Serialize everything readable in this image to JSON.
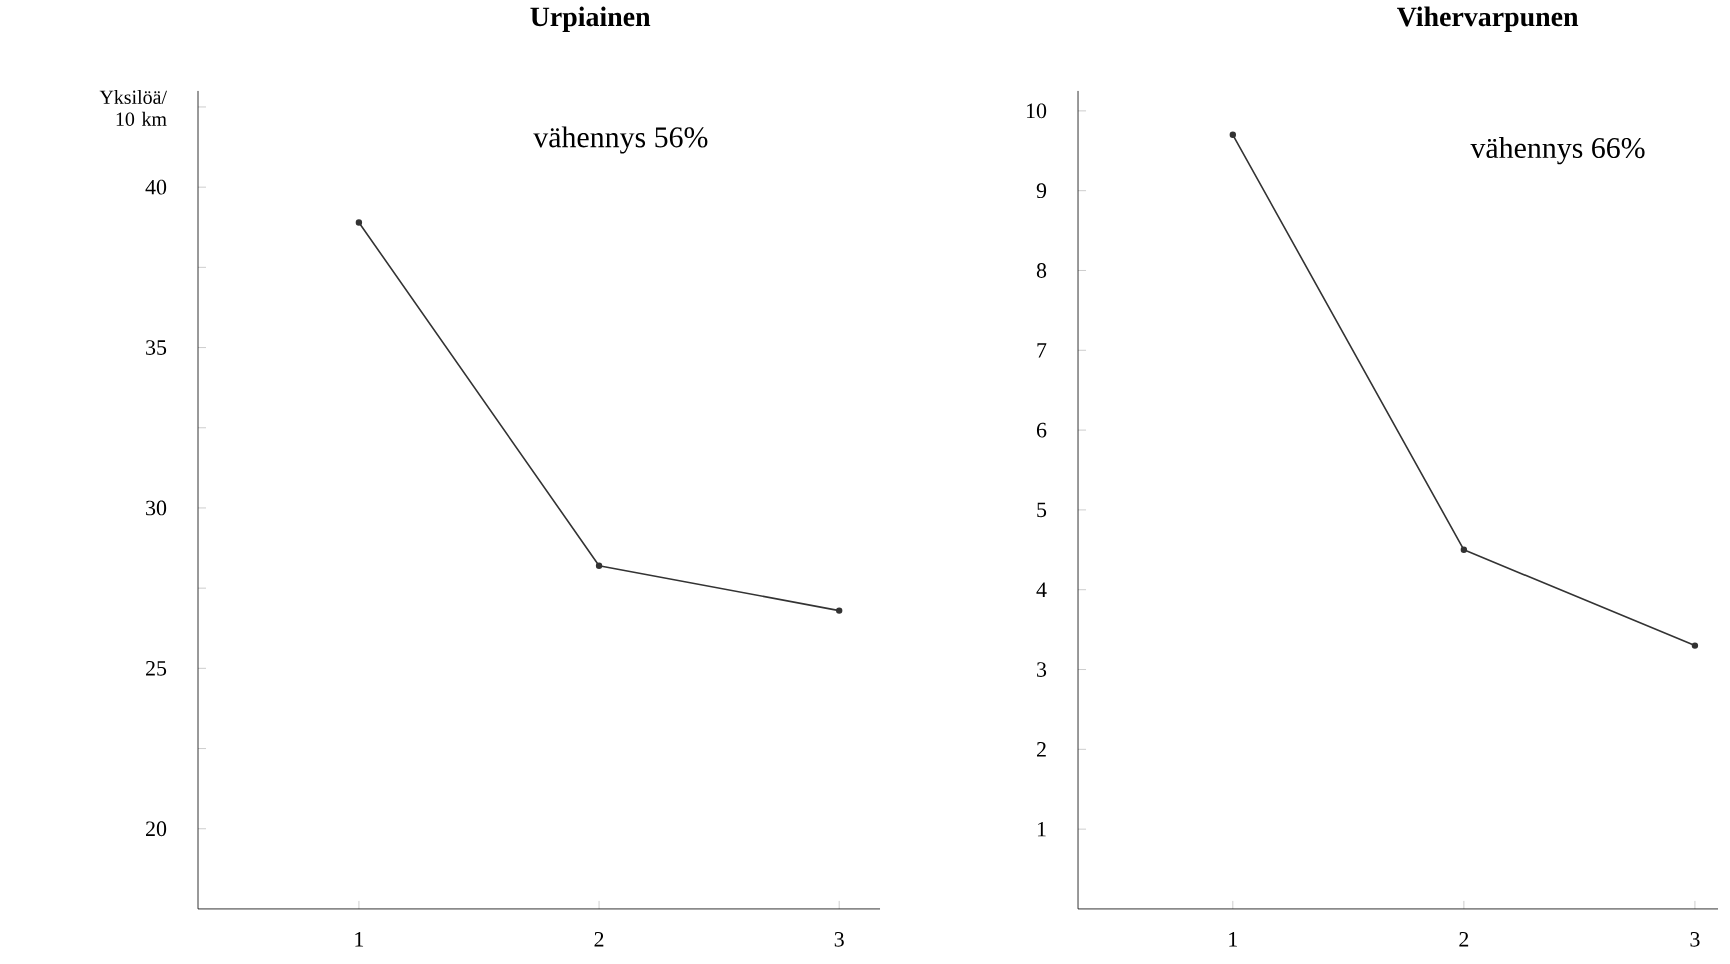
{
  "chart_data": [
    {
      "type": "line",
      "title": "Urpiainen",
      "ylabel": "Yksilöä/ 10 km",
      "annotations": [
        "vähennys 56%"
      ],
      "x": [
        1,
        2,
        3
      ],
      "xlim": [
        0.33,
        3.17
      ],
      "xticks": [
        1,
        2,
        3
      ],
      "ylim": [
        17.5,
        43
      ],
      "yticks": [
        20,
        {
          "value": 22.5,
          "label": null
        },
        25,
        {
          "value": 27.5,
          "label": null
        },
        30,
        {
          "value": 32.5,
          "label": null
        },
        35,
        {
          "value": 37.5,
          "label": null
        },
        40,
        {
          "value": 42.5,
          "label": null
        }
      ],
      "marker": "circle",
      "series": [
        {
          "color": "#333333",
          "values": [
            38.9,
            28.2,
            26.8
          ]
        }
      ]
    },
    {
      "type": "line",
      "title": "Vihervarpunen",
      "annotations": [
        "vähennys 66%"
      ],
      "x": [
        1,
        2,
        3
      ],
      "xlim": [
        0.33,
        3.1
      ],
      "xticks": [
        1,
        2,
        3
      ],
      "ylim": [
        0,
        10.25
      ],
      "yticks": [
        1,
        2,
        3,
        4,
        5,
        6,
        7,
        8,
        9,
        10
      ],
      "marker": "circle",
      "series": [
        {
          "color": "#333333",
          "values": [
            9.7,
            4.5,
            3.3
          ]
        }
      ]
    }
  ]
}
